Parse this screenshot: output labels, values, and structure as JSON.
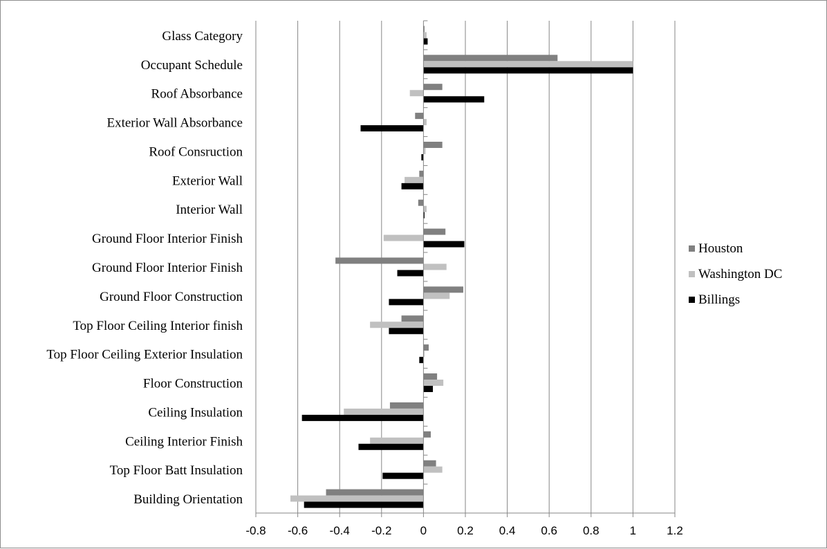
{
  "chart_data": {
    "type": "bar",
    "orientation": "horizontal",
    "categories": [
      "Glass Category",
      "Occupant Schedule",
      "Roof Absorbance",
      "Exterior Wall Absorbance",
      "Roof Consruction",
      "Exterior Wall",
      "Interior Wall",
      "Ground Floor Interior Finish",
      "Ground Floor Interior Finish",
      "Ground Floor Construction",
      "Top Floor Ceiling Interior finish",
      "Top Floor Ceiling Exterior Insulation",
      "Floor Construction",
      "Ceiling Insulation",
      "Ceiling Interior Finish",
      "Top Floor Batt Insulation",
      "Building Orientation"
    ],
    "series": [
      {
        "name": "Houston",
        "color": "#808080",
        "values": [
          0.005,
          0.64,
          0.09,
          -0.04,
          0.09,
          -0.02,
          -0.025,
          0.105,
          -0.42,
          0.19,
          -0.105,
          0.025,
          0.065,
          -0.16,
          0.035,
          0.06,
          -0.465
        ]
      },
      {
        "name": "Washington DC",
        "color": "#c0c0c0",
        "values": [
          0.015,
          1.0,
          -0.065,
          0.015,
          0.01,
          -0.09,
          0.015,
          -0.19,
          0.11,
          0.125,
          -0.255,
          0.005,
          0.095,
          -0.38,
          -0.255,
          0.09,
          -0.635
        ]
      },
      {
        "name": "Billings",
        "color": "#000000",
        "values": [
          0.02,
          1.0,
          0.29,
          -0.3,
          -0.01,
          -0.105,
          0.005,
          0.195,
          -0.125,
          -0.165,
          -0.165,
          -0.02,
          0.045,
          -0.58,
          -0.31,
          -0.195,
          -0.57
        ]
      }
    ],
    "xlim": [
      -0.8,
      1.2
    ],
    "xticks": [
      "-0.8",
      "-0.6",
      "-0.4",
      "-0.2",
      "0",
      "0.2",
      "0.4",
      "0.6",
      "0.8",
      "1",
      "1.2"
    ],
    "grid": "vertical",
    "legend_position": "right",
    "title": "",
    "xlabel": "",
    "ylabel": ""
  }
}
